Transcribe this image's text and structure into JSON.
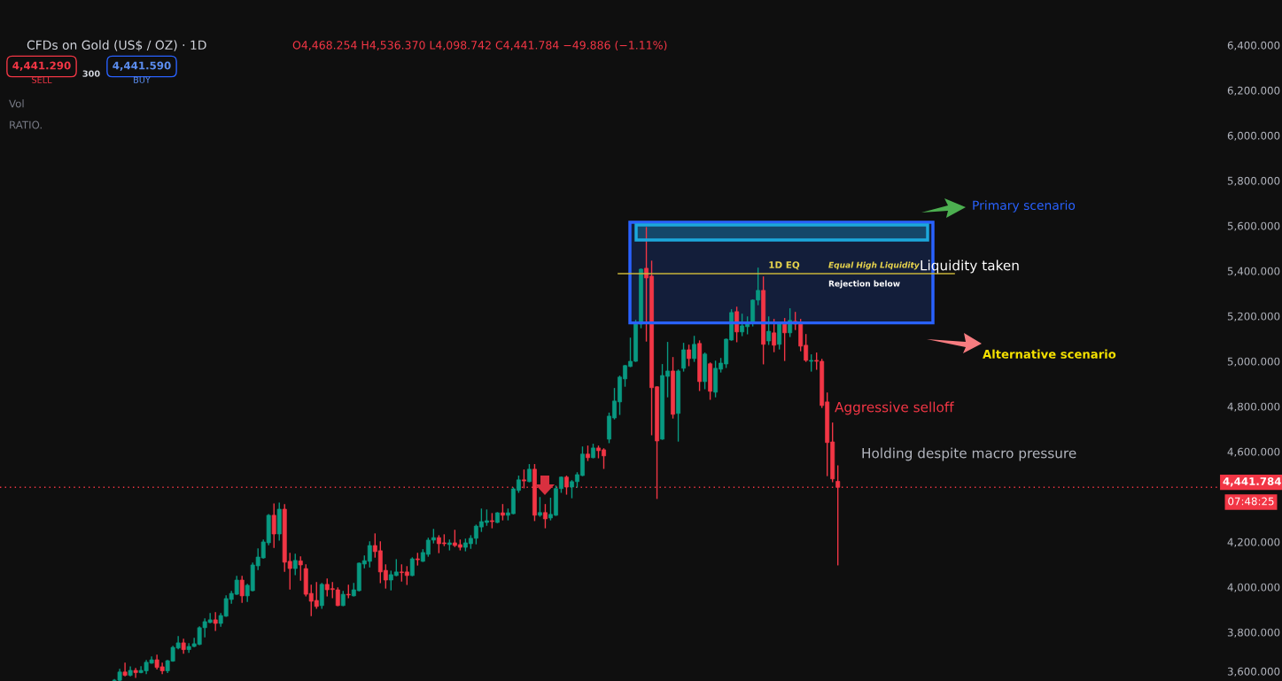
{
  "chart_data": {
    "type": "candlestick",
    "title": "CFDs on Gold (US$ / OZ) · 1D",
    "subtitle": "O4,468.254 H4,536.370 L4,098.742 C4,441.784 −49.886 (−1.11%)",
    "categories": [
      null,
      null,
      null,
      null,
      null,
      null,
      null,
      null,
      null,
      null,
      null,
      null,
      null,
      null,
      null,
      null,
      null,
      null,
      null,
      null,
      null,
      null,
      null,
      null,
      null,
      null,
      null,
      null,
      null,
      null,
      null,
      null,
      null,
      null,
      null,
      null,
      null,
      null,
      null,
      null,
      null,
      null,
      null,
      null,
      null,
      null,
      null,
      null,
      null,
      null,
      null,
      null,
      null,
      null,
      null,
      null,
      null,
      null,
      null,
      null,
      null,
      null,
      null,
      null,
      null,
      null,
      null,
      null,
      null,
      null,
      null,
      null,
      null,
      null,
      null,
      null,
      null,
      null,
      null,
      null,
      null,
      null,
      null,
      null,
      null,
      null,
      null,
      null,
      null,
      null,
      null,
      null,
      null,
      null,
      null,
      null,
      null,
      null,
      null,
      null,
      null,
      null,
      null,
      null,
      null,
      null,
      null,
      null,
      null,
      null,
      null,
      null,
      null,
      null,
      null,
      null,
      null,
      null,
      null,
      null,
      null,
      null,
      null,
      null,
      null,
      null,
      null,
      null,
      null,
      null,
      null,
      null,
      null,
      null,
      null,
      null,
      null,
      null,
      null,
      null,
      null,
      null,
      null,
      null,
      null,
      null,
      null,
      null,
      null,
      null,
      null,
      null,
      null,
      null,
      null,
      null,
      null,
      null,
      null,
      null,
      null,
      null,
      null,
      null,
      null,
      null,
      null,
      null,
      null,
      null,
      null,
      null,
      null,
      null,
      null,
      null,
      null,
      null,
      null,
      null,
      null,
      null,
      null,
      null,
      null,
      null,
      null,
      null,
      null,
      null,
      null,
      null,
      null,
      null,
      null,
      null,
      null,
      null,
      null,
      null,
      null,
      null,
      null,
      null,
      null,
      null,
      null,
      null,
      null,
      null,
      null,
      null,
      null,
      null,
      null,
      null,
      null,
      null,
      null,
      null,
      null,
      null,
      null,
      null,
      null,
      null,
      null,
      null,
      null
    ],
    "ohlc": [
      null,
      null,
      null,
      null,
      null,
      null,
      null,
      null,
      null,
      null,
      null,
      null,
      null,
      null,
      null,
      null,
      null,
      null,
      null,
      null,
      null,
      [
        3586,
        3590,
        3584,
        3588
      ],
      [
        3587,
        3635,
        3585,
        3624
      ],
      [
        3624,
        3663,
        3607,
        3609
      ],
      [
        3609,
        3646,
        3607,
        3631
      ],
      [
        3631,
        3639,
        3600,
        3621
      ],
      [
        3621,
        3647,
        3621,
        3631
      ],
      [
        3629,
        3674,
        3617,
        3667
      ],
      [
        3663,
        3690,
        3663,
        3678
      ],
      [
        3678,
        3698,
        3638,
        3644
      ],
      [
        3647,
        3663,
        3617,
        3629
      ],
      [
        3629,
        3674,
        3622,
        3674
      ],
      [
        3672,
        3737,
        3672,
        3733
      ],
      [
        3730,
        3780,
        3727,
        3753
      ],
      [
        3753,
        3769,
        3707,
        3723
      ],
      [
        3723,
        3749,
        3711,
        3737
      ],
      [
        3737,
        3772,
        3737,
        3749
      ],
      [
        3746,
        3823,
        3746,
        3820
      ],
      [
        3820,
        3859,
        3780,
        3847
      ],
      [
        3843,
        3882,
        3843,
        3855
      ],
      [
        3855,
        3886,
        3808,
        3839
      ],
      [
        3839,
        3882,
        3827,
        3874
      ],
      [
        3871,
        3961,
        3871,
        3949
      ],
      [
        3945,
        3980,
        3929,
        3972
      ],
      [
        3968,
        4047,
        3968,
        4031
      ],
      [
        4031,
        4047,
        3933,
        3961
      ],
      [
        3961,
        4012,
        3937,
        4008
      ],
      [
        3984,
        4106,
        3984,
        4098
      ],
      [
        4094,
        4169,
        4078,
        4133
      ],
      [
        4129,
        4208,
        4129,
        4200
      ],
      [
        4196,
        4321,
        4188,
        4318
      ],
      [
        4318,
        4368,
        4176,
        4235
      ],
      [
        4235,
        4372,
        4208,
        4345
      ],
      [
        4345,
        4365,
        4070,
        4110
      ],
      [
        4114,
        4149,
        3992,
        4082
      ],
      [
        4082,
        4145,
        4055,
        4118
      ],
      [
        4116,
        4133,
        4031,
        4098
      ],
      [
        4082,
        4098,
        3961,
        3968
      ],
      [
        3972,
        4008,
        3874,
        3937
      ],
      [
        3941,
        4020,
        3906,
        3914
      ],
      [
        3918,
        4016,
        3906,
        4012
      ],
      [
        4012,
        4035,
        3961,
        3988
      ],
      [
        3993,
        4020,
        3953,
        3989
      ],
      [
        3988,
        3996,
        3918,
        3918
      ],
      [
        3918,
        3980,
        3918,
        3968
      ],
      [
        3968,
        4008,
        3953,
        3965
      ],
      [
        3961,
        4016,
        3961,
        3988
      ],
      [
        3984,
        4106,
        3984,
        4106
      ],
      [
        4102,
        4137,
        4086,
        4117
      ],
      [
        4114,
        4200,
        4090,
        4184
      ],
      [
        4184,
        4235,
        4133,
        4157
      ],
      [
        4161,
        4200,
        4020,
        4067
      ],
      [
        4074,
        4098,
        3996,
        4031
      ],
      [
        4031,
        4070,
        3988,
        4055
      ],
      [
        4051,
        4121,
        4051,
        4067
      ],
      [
        4067,
        4098,
        4027,
        4064
      ],
      [
        4067,
        4090,
        4012,
        4051
      ],
      [
        4051,
        4129,
        4051,
        4125
      ],
      [
        4125,
        4149,
        4098,
        4121
      ],
      [
        4114,
        4165,
        4114,
        4153
      ],
      [
        4145,
        4216,
        4137,
        4208
      ],
      [
        4208,
        4255,
        4196,
        4219
      ],
      [
        4219,
        4227,
        4153,
        4192
      ],
      [
        4196,
        4231,
        4184,
        4192
      ],
      [
        4188,
        4208,
        4165,
        4196
      ],
      [
        4196,
        4251,
        4180,
        4184
      ],
      [
        4188,
        4208,
        4165,
        4176
      ],
      [
        4176,
        4212,
        4161,
        4196
      ],
      [
        4192,
        4227,
        4172,
        4216
      ],
      [
        4216,
        4274,
        4192,
        4270
      ],
      [
        4266,
        4345,
        4247,
        4290
      ],
      [
        4286,
        4341,
        4274,
        4294
      ],
      [
        4294,
        4325,
        4263,
        4290
      ],
      [
        4286,
        4329,
        4286,
        4329
      ],
      [
        4329,
        4365,
        4298,
        4318
      ],
      [
        4318,
        4345,
        4298,
        4329
      ],
      [
        4325,
        4439,
        4325,
        4435
      ],
      [
        4428,
        4491,
        4420,
        4475
      ],
      [
        4475,
        4518,
        4440,
        4470
      ],
      [
        4467,
        4542,
        4467,
        4522
      ],
      [
        4522,
        4542,
        4295,
        4318
      ],
      [
        4318,
        4396,
        4314,
        4330
      ],
      [
        4330,
        4365,
        4263,
        4302
      ],
      [
        4306,
        4393,
        4298,
        4322
      ],
      [
        4318,
        4447,
        4318,
        4436
      ],
      [
        4436,
        4487,
        4420,
        4487
      ],
      [
        4487,
        4491,
        4412,
        4443
      ],
      [
        4443,
        4471,
        4396,
        4467
      ],
      [
        4467,
        4506,
        4443,
        4498
      ],
      [
        4494,
        4620,
        4494,
        4589
      ],
      [
        4589,
        4624,
        4561,
        4573
      ],
      [
        4573,
        4632,
        4573,
        4616
      ],
      [
        4616,
        4624,
        4573,
        4604
      ],
      [
        4608,
        4612,
        4526,
        4581
      ],
      [
        4655,
        4770,
        4640,
        4757
      ],
      [
        4749,
        4879,
        4745,
        4824
      ],
      [
        4820,
        4934,
        4765,
        4930
      ],
      [
        4922,
        4981,
        4890,
        4981
      ],
      [
        4977,
        5102,
        4977,
        5000
      ],
      [
        5000,
        5181,
        5000,
        5173
      ],
      [
        5165,
        5408,
        5149,
        5408
      ],
      [
        5412,
        5592,
        5090,
        5369
      ],
      [
        5377,
        5443,
        4675,
        4883
      ],
      [
        4887,
        4887,
        4393,
        4647
      ],
      [
        4655,
        4985,
        4655,
        4937
      ],
      [
        4933,
        5083,
        4843,
        4957
      ],
      [
        4957,
        5016,
        4749,
        4765
      ],
      [
        4769,
        4961,
        4647,
        4957
      ],
      [
        4969,
        5079,
        4957,
        5051
      ],
      [
        5051,
        5071,
        4981,
        5012
      ],
      [
        5012,
        5110,
        5000,
        5075
      ],
      [
        5079,
        5090,
        4871,
        4910
      ],
      [
        4910,
        5036,
        4879,
        5032
      ],
      [
        4989,
        4992,
        4832,
        4867
      ],
      [
        4863,
        5000,
        4843,
        4969
      ],
      [
        4965,
        5012,
        4953,
        4992
      ],
      [
        4988,
        5098,
        4973,
        5098
      ],
      [
        5094,
        5228,
        5094,
        5216
      ],
      [
        5220,
        5239,
        5087,
        5130
      ],
      [
        5130,
        5208,
        5114,
        5157
      ],
      [
        5153,
        5196,
        5122,
        5173
      ],
      [
        5169,
        5271,
        5157,
        5271
      ],
      [
        5271,
        5412,
        5251,
        5314
      ],
      [
        5314,
        5373,
        4989,
        5075
      ],
      [
        5090,
        5196,
        5075,
        5133
      ],
      [
        5126,
        5185,
        5043,
        5071
      ],
      [
        5075,
        5165,
        5055,
        5165
      ],
      [
        5173,
        5189,
        5004,
        5126
      ],
      [
        5126,
        5232,
        5110,
        5181
      ],
      [
        5177,
        5216,
        5141,
        5165
      ],
      [
        5169,
        5185,
        5047,
        5067
      ],
      [
        5071,
        5118,
        5000,
        5004
      ],
      [
        5000,
        5028,
        4957,
        5004
      ],
      [
        5004,
        5036,
        4965,
        5000
      ],
      [
        5000,
        5008,
        4796,
        4804
      ],
      [
        4820,
        4859,
        4494,
        4640
      ],
      [
        4643,
        4726,
        4467,
        4479
      ],
      [
        4468.254,
        4536.37,
        4098.742,
        4441.784
      ],
      null,
      null,
      null,
      null,
      null,
      null,
      null,
      null,
      null,
      null,
      null,
      null,
      null,
      null,
      null,
      null,
      null,
      null,
      null,
      null,
      null,
      null,
      null,
      null,
      null,
      null,
      null,
      null,
      null,
      null,
      null,
      null,
      null,
      null,
      null,
      null,
      null,
      null,
      null,
      null,
      null,
      null,
      null,
      null,
      null,
      null,
      null,
      null,
      null,
      null,
      null,
      null,
      null,
      null,
      null,
      null,
      null,
      null,
      null,
      null,
      null,
      null,
      null,
      null,
      null,
      null,
      null,
      null,
      null,
      null,
      null
    ],
    "colors": [
      null,
      null,
      null,
      null,
      null,
      null,
      null,
      null,
      null,
      null,
      null,
      null,
      null,
      null,
      null,
      null,
      null,
      null,
      null,
      null,
      null,
      "#089981",
      "#089981",
      "#f23645",
      "#089981",
      "#f23645",
      "#089981",
      "#089981",
      "#089981",
      "#f23645",
      "#f23645",
      "#089981",
      "#089981",
      "#089981",
      "#f23645",
      "#089981",
      "#089981",
      "#089981",
      "#089981",
      "#089981",
      "#f23645",
      "#089981",
      "#089981",
      "#089981",
      "#089981",
      "#f23645",
      "#089981",
      "#089981",
      "#089981",
      "#089981",
      "#089981",
      "#f23645",
      "#089981",
      "#f23645",
      "#f23645",
      "#089981",
      "#f23645",
      "#f23645",
      "#f23645",
      "#f23645",
      "#089981",
      "#f23645",
      "#f23645",
      "#f23645",
      "#089981",
      "#f23645",
      "#089981",
      "#089981",
      "#089981",
      "#089981",
      "#f23645",
      "#f23645",
      "#f23645",
      "#089981",
      "#089981",
      "#f23645",
      "#f23645",
      "#089981",
      "#f23645",
      "#089981",
      "#089981",
      "#089981",
      "#f23645",
      "#f23645",
      "#089981",
      "#f23645",
      "#f23645",
      "#089981",
      "#089981",
      "#089981",
      "#089981",
      "#089981",
      "#f23645",
      "#089981",
      "#f23645",
      "#089981",
      "#089981",
      "#089981",
      "#f23645",
      "#089981",
      "#f23645",
      "#089981",
      "#f23645",
      "#089981",
      "#089981",
      "#089981",
      "#f23645",
      "#089981",
      "#089981",
      "#089981",
      "#f23645",
      "#089981",
      "#f23645",
      "#f23645",
      "#089981",
      "#089981",
      "#089981",
      "#089981",
      "#089981",
      "#089981",
      "#089981",
      "#f23645",
      "#f23645",
      "#f23645",
      "#089981",
      "#089981",
      "#f23645",
      "#089981",
      "#089981",
      "#f23645",
      "#089981",
      "#f23645",
      "#089981",
      "#f23645",
      "#089981",
      "#089981",
      "#089981",
      "#089981",
      "#f23645",
      "#089981",
      "#089981",
      "#089981",
      "#089981",
      "#f23645",
      "#089981",
      "#f23645",
      "#089981",
      "#f23645",
      "#089981",
      "#f23645",
      "#f23645",
      "#f23645",
      "#089981",
      "#f23645",
      "#f23645",
      "#f23645",
      "#f23645",
      "#f23645",
      null,
      null,
      null,
      null,
      null,
      null,
      null,
      null,
      null,
      null,
      null,
      null,
      null,
      null,
      null,
      null,
      null,
      null,
      null,
      null,
      null,
      null,
      null,
      null,
      null,
      null,
      null,
      null,
      null,
      null,
      null,
      null,
      null,
      null,
      null,
      null,
      null,
      null,
      null,
      null,
      null,
      null,
      null,
      null,
      null,
      null,
      null,
      null,
      null,
      null,
      null,
      null,
      null,
      null,
      null,
      null,
      null,
      null,
      null,
      null,
      null,
      null,
      null,
      null,
      null,
      null,
      null,
      null,
      null,
      null,
      null
    ],
    "ylim": [
      3584,
      6400
    ],
    "yticks": [
      {
        "value": 3600,
        "label": "3,600.000"
      },
      {
        "value": 3800,
        "label": "3,800.000"
      },
      {
        "value": 4000,
        "label": "4,000.000"
      },
      {
        "value": 4200,
        "label": "4,200.000"
      },
      {
        "value": 4600,
        "label": "4,600.000"
      },
      {
        "value": 4800,
        "label": "4,800.000"
      },
      {
        "value": 5000,
        "label": "5,000.000"
      },
      {
        "value": 5200,
        "label": "5,200.000"
      },
      {
        "value": 5400,
        "label": "5,400.000"
      },
      {
        "value": 5600,
        "label": "5,600.000"
      },
      {
        "value": 5800,
        "label": "5,800.000"
      },
      {
        "value": 6000,
        "label": "6,000.000"
      },
      {
        "value": 6200,
        "label": "6,200.000"
      },
      {
        "value": 6400,
        "label": "6,400.000"
      }
    ],
    "grid": false,
    "ref_lines": [
      {
        "axis": "y",
        "value": 4441.784,
        "label": "4,441.784",
        "color": "#f23645",
        "line_style": "dotted"
      },
      {
        "axis": "y",
        "value": 5388,
        "label": "1D EQ",
        "color": "#c8b43a",
        "line_style": "solid"
      }
    ],
    "bands": [
      {
        "axis": "y",
        "from": 5170,
        "to": 5616,
        "label": null,
        "color": "#2962ff"
      },
      {
        "axis": "y",
        "from": 5537,
        "to": 5604,
        "label": null,
        "color": "#1ca8dc"
      }
    ],
    "annotations": [
      "4,441.290",
      "SELL",
      "300",
      "4,441.590",
      "BUY",
      "Vol",
      "RATIO.",
      "Primary scenario",
      "Liquidity taken",
      "Equal High Liquidity",
      "Rejection below",
      "Alternative scenario",
      "Aggressive selloff",
      "Holding despite macro pressure",
      "07:48:25"
    ]
  }
}
